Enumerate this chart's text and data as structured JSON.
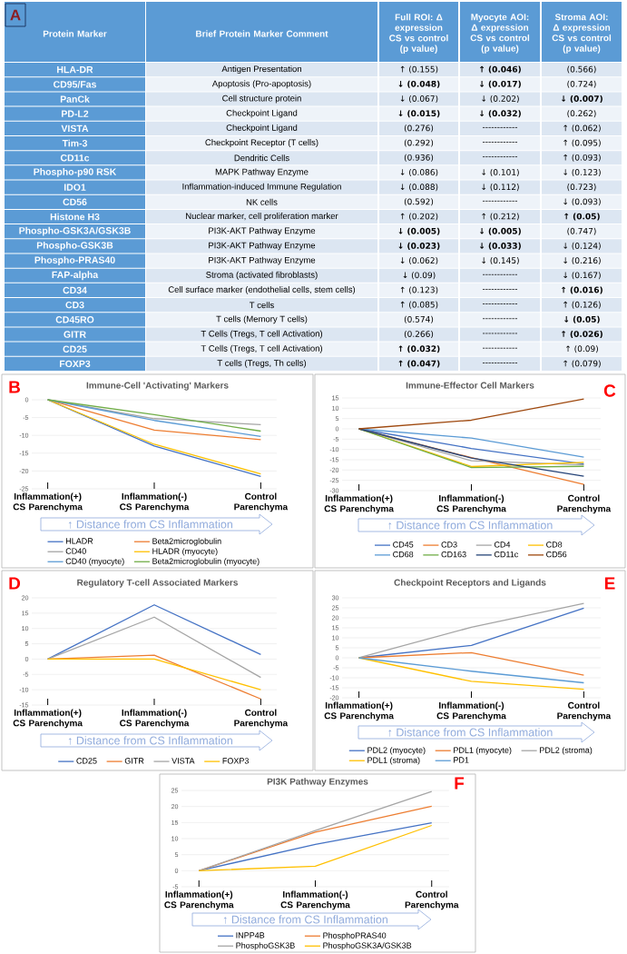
{
  "chart_data": [
    {
      "type": "other",
      "annotations": [
        "A"
      ],
      "ylabel": "Protein Marker",
      "categories": [
        "Brief Protein Marker Comment",
        "Full ROI: Δ expression CS vs control (p value)",
        "Myocyte AOI: Δ expression CS vs control (p value)",
        "Stroma AOI: Δ expression CS vs control (p value)"
      ],
      "y_categories": [
        "HLA-DR",
        "CD95/Fas",
        "PanCk",
        "PD-L2",
        "VISTA",
        "Tim-3",
        "CD11c",
        "Phospho-p90 RSK",
        "IDO1",
        "CD56",
        "Histone H3",
        "Phospho-GSK3A/GSK3B",
        "Phospho-GSK3B",
        "Phospho-PRAS40",
        "FAP-alpha",
        "CD34",
        "CD3",
        "CD45RO",
        "GITR",
        "CD25",
        "FOXP3"
      ],
      "cell_labels": [
        [
          "Antigen Presentation",
          "↑ (0.155)",
          "**↑ (0.046)**",
          "(0.566)"
        ],
        [
          "Apoptosis (Pro-apoptosis)",
          "**↓ (0.048)**",
          "**↓ (0.017)**",
          "(0.724)"
        ],
        [
          "Cell structure protein",
          "↓ (0.067)",
          "↓ (0.202)",
          "**↓ (0.007)**"
        ],
        [
          "Checkpoint Ligand",
          "**↓ (0.015)**",
          "**↓ (0.032)**",
          "(0.262)"
        ],
        [
          "Checkpoint Ligand",
          "(0.276)",
          "------------",
          "↑ (0.062)"
        ],
        [
          "Checkpoint Receptor (T cells)",
          "(0.292)",
          "------------",
          "↑ (0.095)"
        ],
        [
          "Dendritic Cells",
          "(0.936)",
          "------------",
          "↑ (0.093)"
        ],
        [
          "MAPK Pathway Enzyme",
          "↓ (0.086)",
          "↓ (0.101)",
          "↓ (0.123)"
        ],
        [
          "Inflammation-induced Immune Regulation",
          "↓ (0.088)",
          "↓ (0.112)",
          "(0.723)"
        ],
        [
          "NK cells",
          "(0.592)",
          "------------",
          "↓ (0.093)"
        ],
        [
          "Nuclear marker, cell proliferation marker",
          "↑ (0.202)",
          "↑ (0.212)",
          "**↑ (0.05)**"
        ],
        [
          "PI3K-AKT Pathway Enzyme",
          "**↓ (0.005)**",
          "**↓ (0.005)**",
          "(0.747)"
        ],
        [
          "PI3K-AKT Pathway Enzyme",
          "**↓ (0.023)**",
          "**↓ (0.033)**",
          "↓ (0.124)"
        ],
        [
          "PI3K-AKT Pathway Enzyme",
          "↓ (0.062)",
          "↓ (0.145)",
          "↓ (0.216)"
        ],
        [
          "Stroma (activated fibroblasts)",
          "↓ (0.09)",
          "------------",
          "↓ (0.167)"
        ],
        [
          "Cell surface marker (endothelial cells, stem cells)",
          "↑ (0.123)",
          "------------",
          "**↑ (0.016)**"
        ],
        [
          "T cells",
          "↑ (0.085)",
          "------------",
          "↑ (0.126)"
        ],
        [
          "T cells (Memory T cells)",
          "(0.574)",
          "------------",
          "**↓ (0.05)**"
        ],
        [
          "T Cells (Tregs, T cell Activation)",
          "(0.266)",
          "------------",
          "**↑ (0.026)**"
        ],
        [
          "T Cells (Tregs, T cell Activation)",
          "**↑ (0.032)**",
          "------------",
          "↑ (0.09)"
        ],
        [
          "T cells (Tregs, Th cells)",
          "**↑ (0.047)**",
          "------------",
          "↑ (0.079)"
        ]
      ]
    },
    {
      "type": "line",
      "title": "Immune-Cell 'Activating' Markers",
      "annotations": [
        "B",
        "↑ Distance from CS Inflammation"
      ],
      "categories": [
        "Inflammation(+) CS Parenchyma",
        "Inflammation(-) CS Parenchyma",
        "Control Parenchyma"
      ],
      "ylim": [
        -25,
        0
      ],
      "yticks": [
        -25,
        -20,
        -15,
        -10,
        -5,
        0
      ],
      "grid": "y",
      "legend": "bottom",
      "series": [
        {
          "name": "HLADR",
          "color": "#4472c4",
          "values": [
            0,
            -13,
            -21.5
          ]
        },
        {
          "name": "Beta2microglobulin",
          "color": "#ed7d31",
          "values": [
            0,
            -8.5,
            -11.2
          ]
        },
        {
          "name": "CD40",
          "color": "#a5a5a5",
          "values": [
            0,
            -5.3,
            -7
          ]
        },
        {
          "name": "HLADR (myocyte)",
          "color": "#ffc000",
          "values": [
            0,
            -12.5,
            -20.8
          ]
        },
        {
          "name": "CD40 (myocyte)",
          "color": "#5b9bd5",
          "values": [
            0,
            -5.8,
            -10.3
          ]
        },
        {
          "name": "Beta2microglobulin (myocyte)",
          "color": "#70ad47",
          "values": [
            0,
            -4.2,
            -8.8
          ]
        }
      ]
    },
    {
      "type": "line",
      "title": "Immune-Effector Cell Markers",
      "annotations": [
        "C",
        "↑ Distance from CS Inflammation"
      ],
      "categories": [
        "Inflammation(+) CS Parenchyma",
        "Inflammation(-) CS Parenchyma",
        "Control Parenchyma"
      ],
      "ylim": [
        -30,
        15
      ],
      "yticks": [
        -30,
        -25,
        -20,
        -15,
        -10,
        -5,
        0,
        5,
        10,
        15
      ],
      "grid": "y",
      "legend": "bottom",
      "series": [
        {
          "name": "CD45",
          "color": "#4472c4",
          "values": [
            0,
            -9.5,
            -17
          ]
        },
        {
          "name": "CD3",
          "color": "#ed7d31",
          "values": [
            0,
            -14,
            -27
          ]
        },
        {
          "name": "CD4",
          "color": "#a5a5a5",
          "values": [
            0,
            -15.5,
            -17.5
          ]
        },
        {
          "name": "CD8",
          "color": "#ffc000",
          "values": [
            0,
            -18.3,
            -16.3
          ]
        },
        {
          "name": "CD68",
          "color": "#5b9bd5",
          "values": [
            0,
            -4.5,
            -13.7
          ]
        },
        {
          "name": "CD163",
          "color": "#70ad47",
          "values": [
            0,
            -18.8,
            -18.2
          ]
        },
        {
          "name": "CD11c",
          "color": "#264478",
          "values": [
            0,
            -14.2,
            -23
          ]
        },
        {
          "name": "CD56",
          "color": "#9e480e",
          "values": [
            0,
            4.2,
            14.5
          ]
        }
      ]
    },
    {
      "type": "line",
      "title": "Regulatory T-cell Associated Markers",
      "annotations": [
        "D",
        "↑ Distance from CS Inflammation"
      ],
      "categories": [
        "Inflammation(+) CS Parenchyma",
        "Inflammation(-) CS Parenchyma",
        "Control Parenchyma"
      ],
      "ylim": [
        -15,
        20
      ],
      "yticks": [
        -15,
        -10,
        -5,
        0,
        5,
        10,
        15,
        20
      ],
      "grid": "y",
      "legend": "bottom",
      "series": [
        {
          "name": "CD25",
          "color": "#4472c4",
          "values": [
            0,
            17.7,
            1.5
          ]
        },
        {
          "name": "GITR",
          "color": "#ed7d31",
          "values": [
            0,
            1.3,
            -13
          ]
        },
        {
          "name": "VISTA",
          "color": "#a5a5a5",
          "values": [
            0,
            13.7,
            -6
          ]
        },
        {
          "name": "FOXP3",
          "color": "#ffc000",
          "values": [
            0,
            0,
            -10
          ]
        }
      ]
    },
    {
      "type": "line",
      "title": "Checkpoint Receptors and Ligands",
      "annotations": [
        "E",
        "↑ Distance from CS Inflammation"
      ],
      "categories": [
        "Inflammation(+) CS Parenchyma",
        "Inflammation(-) CS Parenchyma",
        "Control Parenchyma"
      ],
      "ylim": [
        -20,
        30
      ],
      "yticks": [
        -20,
        -15,
        -10,
        -5,
        0,
        5,
        10,
        15,
        20,
        25,
        30
      ],
      "grid": "y",
      "legend": "bottom",
      "series": [
        {
          "name": "PDL2 (myocyte)",
          "color": "#4472c4",
          "values": [
            0,
            6.2,
            24.8
          ]
        },
        {
          "name": "PDL1 (myocyte)",
          "color": "#ed7d31",
          "values": [
            0,
            2.6,
            -8.7
          ]
        },
        {
          "name": "PDL2 (stroma)",
          "color": "#a5a5a5",
          "values": [
            0,
            15.3,
            27.2
          ]
        },
        {
          "name": "PDL1 (stroma)",
          "color": "#ffc000",
          "values": [
            0,
            -11.8,
            -15.7
          ]
        },
        {
          "name": "PD1",
          "color": "#5b9bd5",
          "values": [
            0,
            -6.7,
            -12.5
          ]
        }
      ]
    },
    {
      "type": "line",
      "title": "PI3K Pathway Enzymes",
      "annotations": [
        "F",
        "↑ Distance from CS Inflammation"
      ],
      "categories": [
        "Inflammation(+) CS Parenchyma",
        "Inflammation(-) CS Parenchyma",
        "Control Parenchyma"
      ],
      "ylim": [
        -5,
        25
      ],
      "yticks": [
        -5,
        0,
        5,
        10,
        15,
        20,
        25
      ],
      "grid": "y",
      "legend": "bottom",
      "series": [
        {
          "name": "INPP4B",
          "color": "#4472c4",
          "values": [
            0,
            8.2,
            14.9
          ]
        },
        {
          "name": "PhosphoPRAS40",
          "color": "#ed7d31",
          "values": [
            0,
            12,
            20.1
          ]
        },
        {
          "name": "PhosphoGSK3B",
          "color": "#a5a5a5",
          "values": [
            0,
            12.5,
            24.7
          ]
        },
        {
          "name": "PhosphoGSK3A/GSK3B",
          "color": "#ffc000",
          "values": [
            0,
            1.4,
            14.1
          ]
        }
      ]
    }
  ]
}
